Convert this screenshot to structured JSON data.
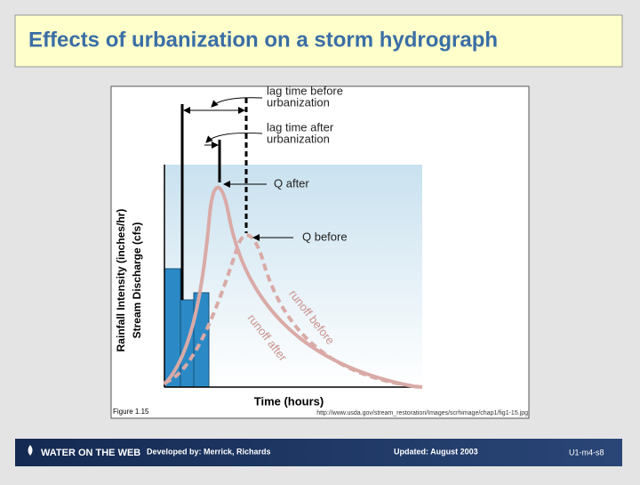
{
  "header": {
    "title": "Effects of urbanization on a storm hydrograph"
  },
  "figure": {
    "labels": {
      "lag_before": [
        "lag time before",
        "urbanization"
      ],
      "lag_after": [
        "lag time after",
        "urbanization"
      ],
      "q_after": "Q after",
      "q_before": "Q before",
      "runoff_before": "runoff before",
      "runoff_after": "runoff after",
      "y_axis": [
        "Rainfall Intensity (inches/hr)",
        "Stream Discharge (cfs)"
      ],
      "x_axis": "Time (hours)"
    },
    "caption": "Figure 1.15",
    "source": "http://www.usda.gov/stream_restoration/Images/scrhimage/chap1/fig1-15.jpg"
  },
  "footer": {
    "logo": "WATER ON THE WEB",
    "developed": "Developed by: Merrick, Richards",
    "updated": "Updated: August 2003",
    "slide_id": "U1-m4-s8"
  }
}
